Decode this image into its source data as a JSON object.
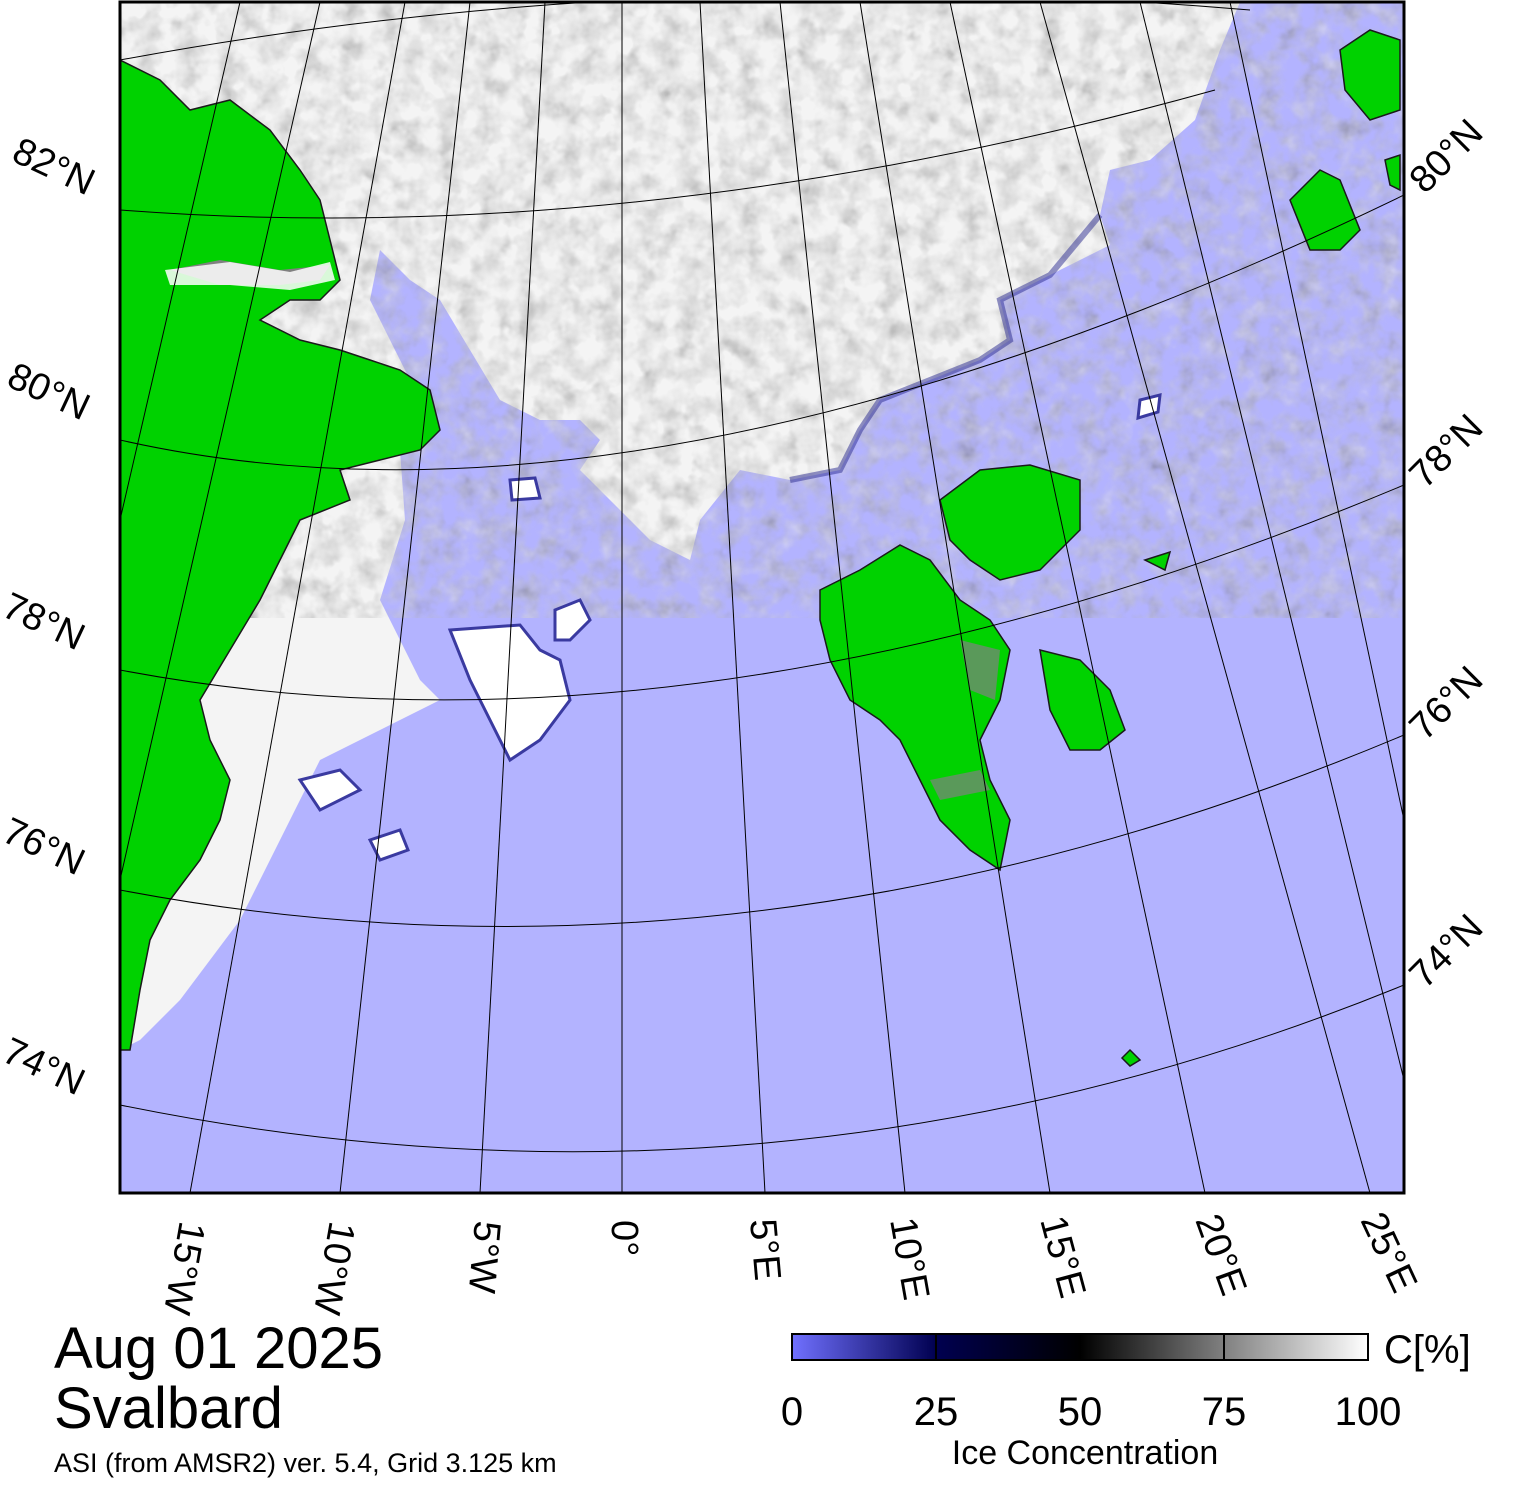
{
  "title": {
    "date": "Aug 01 2025",
    "region": "Svalbard",
    "subtitle": "ASI (from AMSR2) ver. 5.4,  Grid 3.125 km"
  },
  "colors": {
    "ocean": "#b3b3ff",
    "land": "#00d200",
    "land_ice": "#808080",
    "ice_full": "#ffffff",
    "ice_mid": "#000000",
    "ice_low": "#000050",
    "open_water_edge": "#7070ff"
  },
  "lat_labels_left": [
    "82°N",
    "80°N",
    "78°N",
    "76°N",
    "74°N"
  ],
  "lat_labels_right": [
    "80°N",
    "78°N",
    "76°N",
    "74°N"
  ],
  "lon_labels": [
    "15°W",
    "10°W",
    "5°W",
    "0°",
    "5°E",
    "10°E",
    "15°E",
    "20°E",
    "25°E"
  ],
  "colorbar": {
    "unit": "C[%]",
    "ticks": [
      "0",
      "25",
      "50",
      "75",
      "100"
    ],
    "title": "Ice Concentration",
    "range": [
      0,
      100
    ],
    "stops": [
      {
        "value": 0,
        "color": "#7070ff"
      },
      {
        "value": 25,
        "color": "#000050"
      },
      {
        "value": 50,
        "color": "#000000"
      },
      {
        "value": 75,
        "color": "#808080"
      },
      {
        "value": 100,
        "color": "#ffffff"
      }
    ]
  }
}
